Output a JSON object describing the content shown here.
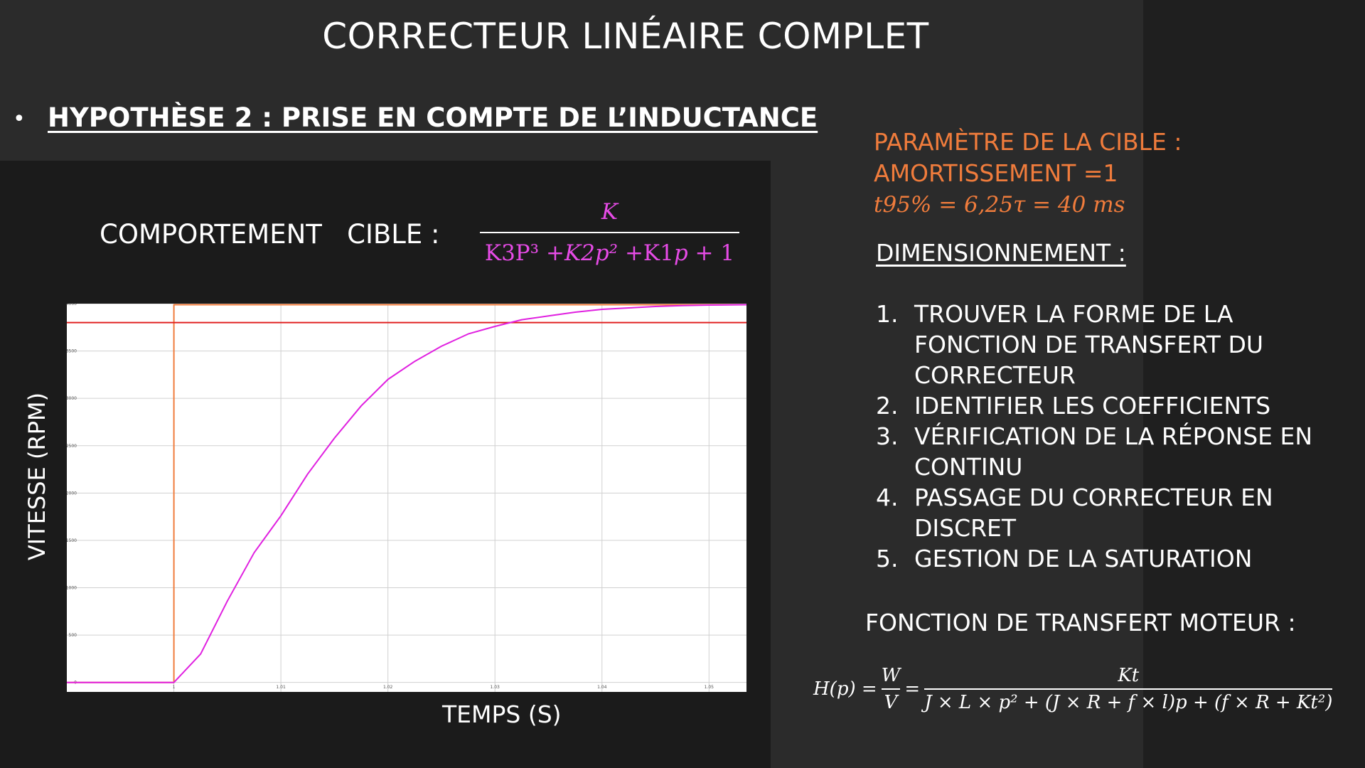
{
  "title": "CORRECTEUR LINÉAIRE COMPLET",
  "bullet": "•",
  "hypothesis": "HYPOTHÈSE 2 : PRISE EN COMPTE DE L’INDUCTANCE",
  "target_label": "COMPORTEMENT   CIBLE :",
  "target_tf": {
    "numerator": "K",
    "den_k3": "K3P³",
    "den_plus1": " +",
    "den_k2": "K2p²",
    "den_plus2": " +K1",
    "den_p": "p",
    "den_plus3": " + 1"
  },
  "params": {
    "heading": "PARAMÈTRE DE LA CIBLE :",
    "damping": "AMORTISSEMENT =1",
    "t95": "t95% = 6,25τ = 40 ms"
  },
  "dimensioning": {
    "heading": "DIMENSIONNEMENT :",
    "steps": [
      {
        "n": "1.",
        "text": "TROUVER LA FORME DE LA FONCTION DE TRANSFERT DU CORRECTEUR"
      },
      {
        "n": "2.",
        "text": "IDENTIFIER LES COEFFICIENTS"
      },
      {
        "n": "3.",
        "text": "VÉRIFICATION DE LA RÉPONSE EN CONTINU"
      },
      {
        "n": "4.",
        "text": "PASSAGE DU CORRECTEUR EN DISCRET"
      },
      {
        "n": "5.",
        "text": "GESTION DE LA SATURATION"
      }
    ]
  },
  "motor_tf": {
    "label": "FONCTION DE TRANSFERT MOTEUR :",
    "lhs": "H(p) =",
    "w": "W",
    "v": "V",
    "eq": "=",
    "num": "Kt",
    "den": "J × L × p² + (J × R + f × l)p + (f × R + Kt²)"
  },
  "colors": {
    "response": "#e020e0",
    "setpoint": "#f07c3c",
    "threshold": "#e02020",
    "accent": "#f07c3c"
  },
  "chart_data": {
    "type": "line",
    "xlabel": "TEMPS (S)",
    "ylabel": "VITESSE (RPM)",
    "xlim": [
      0.99,
      1.0535
    ],
    "ylim": [
      -100,
      4000
    ],
    "x_ticks": [
      1,
      1.01,
      1.02,
      1.03,
      1.04,
      1.05
    ],
    "x_tick_labels": [
      "1",
      "1.01",
      "1.02",
      "1.03",
      "1.04",
      "1.05"
    ],
    "y_ticks": [
      0,
      500,
      1000,
      1500,
      2000,
      2500,
      3000,
      3500,
      4000
    ],
    "y_tick_labels": [
      "0",
      "500",
      "1000",
      "1500",
      "2000",
      "2500",
      "3000",
      "3500",
      "4000"
    ],
    "grid": true,
    "series": [
      {
        "x": [
          0.99,
          1.0,
          1.0,
          1.0535
        ],
        "y": [
          0,
          0,
          4000,
          4000
        ]
      },
      {
        "x": [
          0.99,
          1.0535
        ],
        "y": [
          3800,
          3800
        ]
      },
      {
        "x": [
          0.99,
          1.0,
          1.0025,
          1.005,
          1.0075,
          1.01,
          1.0125,
          1.015,
          1.0175,
          1.02,
          1.0225,
          1.025,
          1.0275,
          1.03,
          1.0325,
          1.035,
          1.0375,
          1.04,
          1.0425,
          1.045,
          1.0475,
          1.05,
          1.0535
        ],
        "y": [
          0,
          0,
          300,
          860,
          1370,
          1760,
          2200,
          2580,
          2920,
          3200,
          3390,
          3550,
          3680,
          3760,
          3830,
          3870,
          3910,
          3940,
          3955,
          3970,
          3980,
          3985,
          3992
        ]
      }
    ]
  }
}
